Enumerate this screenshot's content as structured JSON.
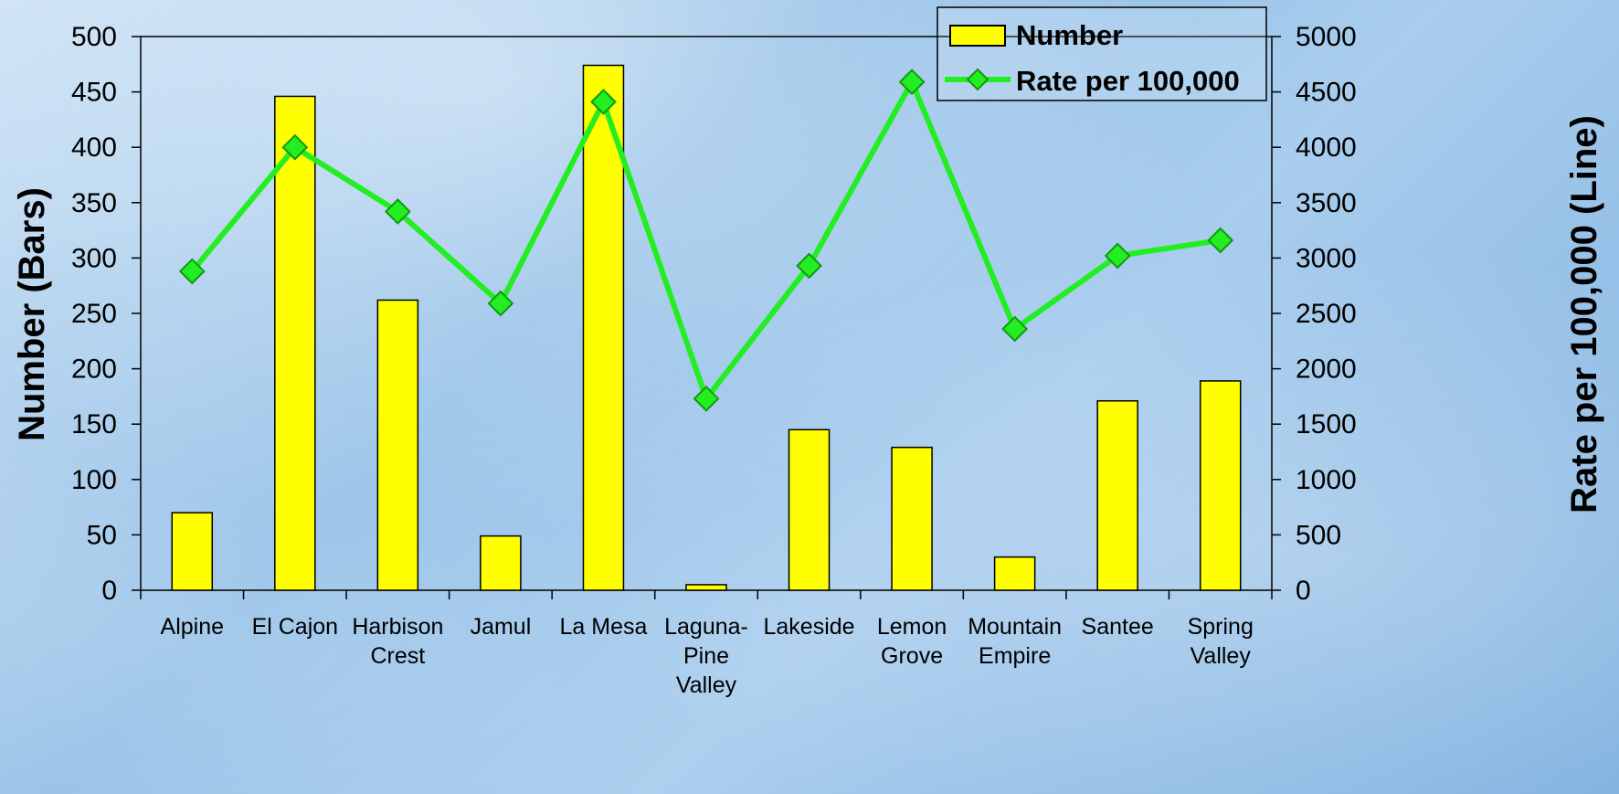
{
  "chart_data": {
    "type": "bar",
    "categories": [
      [
        "Alpine"
      ],
      [
        "El Cajon"
      ],
      [
        "Harbison",
        "Crest"
      ],
      [
        "Jamul"
      ],
      [
        "La Mesa"
      ],
      [
        "Laguna-",
        "Pine",
        "Valley"
      ],
      [
        "Lakeside"
      ],
      [
        "Lemon",
        "Grove"
      ],
      [
        "Mountain",
        "Empire"
      ],
      [
        "Santee"
      ],
      [
        "Spring",
        "Valley"
      ]
    ],
    "series": [
      {
        "name": "Number",
        "type": "bar",
        "axis": "left",
        "color": "#FFFF00",
        "values": [
          70,
          446,
          262,
          49,
          474,
          5,
          145,
          129,
          30,
          171,
          189
        ]
      },
      {
        "name": "Rate per 100,000",
        "type": "line",
        "axis": "right",
        "color": "#22EE22",
        "values": [
          2880,
          4000,
          3420,
          2590,
          4410,
          1730,
          2930,
          4590,
          2360,
          3020,
          3160
        ]
      }
    ],
    "ylabel": "Number (Bars)",
    "y2label": "Rate per 100,000 (Line)",
    "ylim": [
      0,
      500
    ],
    "y2lim": [
      0,
      5000
    ],
    "yticks": [
      "0",
      "50",
      "100",
      "150",
      "200",
      "250",
      "300",
      "350",
      "400",
      "450",
      "500"
    ],
    "y2ticks": [
      "0",
      "500",
      "1000",
      "1500",
      "2000",
      "2500",
      "3000",
      "3500",
      "4000",
      "4500",
      "5000"
    ],
    "grid": false,
    "legend_position": "top-right"
  }
}
